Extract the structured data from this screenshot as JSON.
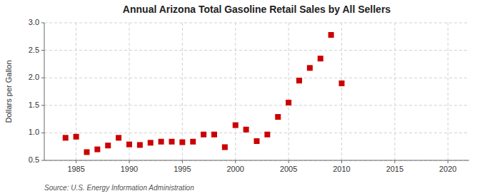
{
  "chart_data": {
    "type": "scatter",
    "title": "Annual Arizona Total Gasoline Retail Sales by All Sellers",
    "y_label": "Dollars per Gallon",
    "source": "Source: U.S. Energy Information Administration",
    "x": [
      1984,
      1985,
      1986,
      1987,
      1988,
      1989,
      1990,
      1991,
      1992,
      1993,
      1994,
      1995,
      1996,
      1997,
      1998,
      1999,
      2000,
      2001,
      2002,
      2003,
      2004,
      2005,
      2006,
      2007,
      2008,
      2009,
      2010
    ],
    "values": [
      0.91,
      0.93,
      0.65,
      0.7,
      0.77,
      0.91,
      0.79,
      0.78,
      0.82,
      0.84,
      0.84,
      0.83,
      0.84,
      0.97,
      0.97,
      0.74,
      1.14,
      1.06,
      0.85,
      0.97,
      1.29,
      1.55,
      1.95,
      2.18,
      2.35,
      2.78,
      1.9
    ],
    "color": "#cc0000",
    "marker": "square",
    "xlim": [
      1982,
      2022
    ],
    "ylim": [
      0.5,
      3.0
    ],
    "xticks": [
      1985,
      1990,
      1995,
      2000,
      2005,
      2010,
      2015,
      2020
    ],
    "yticks": [
      0.5,
      {
        "value": 1.0,
        "label": "1.0"
      },
      1.5,
      {
        "value": 2.0,
        "label": "2.0"
      },
      2.5,
      {
        "value": 3.0,
        "label": "3.0"
      }
    ],
    "grid": true
  }
}
